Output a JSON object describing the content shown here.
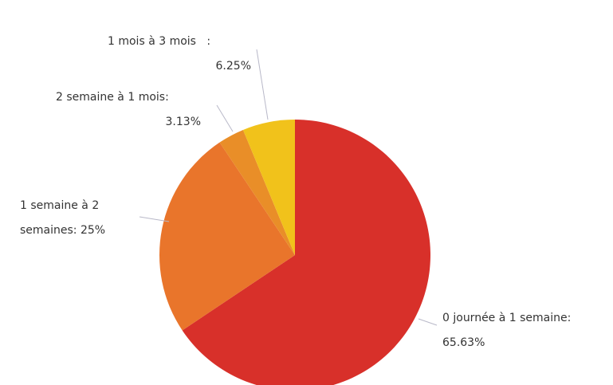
{
  "chart_data": {
    "type": "pie",
    "categories": [
      "0 journée à 1 semaine:",
      "1 semaine à 2 semaines:",
      "2 semaine à 1 mois:",
      "1 mois à 3 mois   :"
    ],
    "values": [
      65.63,
      25,
      3.13,
      6.25
    ],
    "value_labels": [
      "65.63%",
      "25%",
      "3.13%",
      "6.25%"
    ],
    "colors": [
      "#d8302a",
      "#e9752b",
      "#e98e28",
      "#f1c21b"
    ]
  }
}
